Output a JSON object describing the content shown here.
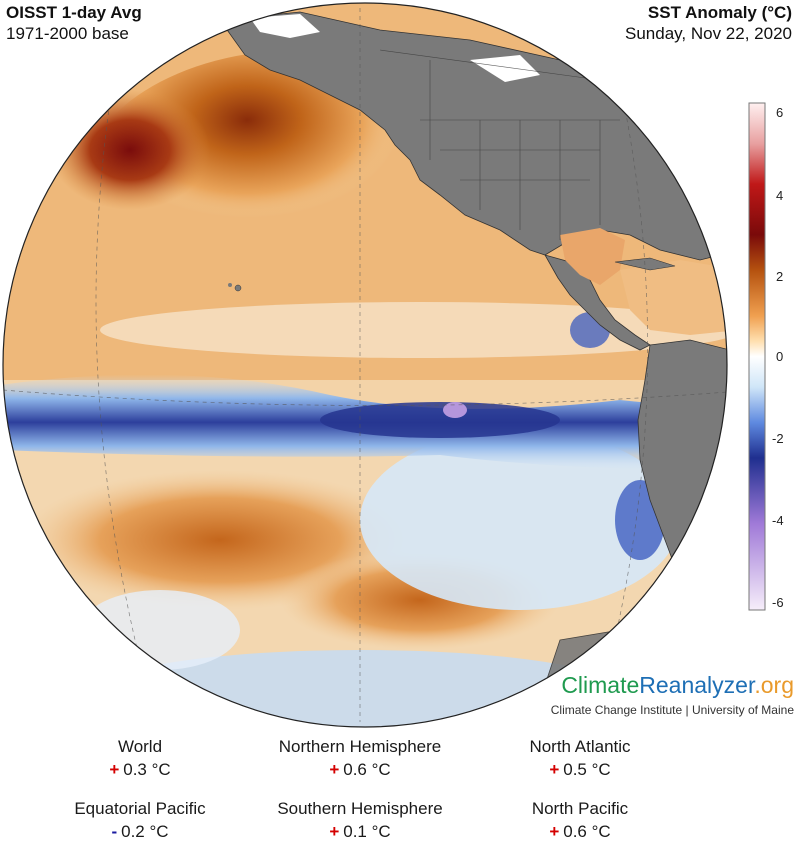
{
  "header": {
    "title": "OISST 1-day Avg",
    "subtitle": "1971-2000 base",
    "map_title": "SST Anomaly (°C)",
    "date": "Sunday, Nov 22, 2020"
  },
  "map": {
    "projection": "orthographic",
    "center_region": "Eastern Pacific",
    "visible_features": [
      "North America",
      "Central America",
      "South America",
      "Hawaii",
      "Equatorial cold tongue"
    ],
    "land_color": "#7a7a7a",
    "ocean_color": "#f2f2f2"
  },
  "colorbar": {
    "ticks": [
      "6",
      "4",
      "2",
      "0",
      "-2",
      "-4",
      "-6"
    ],
    "range": [
      -6,
      6
    ],
    "colors": [
      "#fff0f0",
      "#e8a0a0",
      "#c01818",
      "#7a0a0a",
      "#b5520f",
      "#f0a050",
      "#ffe0b0",
      "#ffffff",
      "#d0e6f8",
      "#5f8ae0",
      "#1f2f8f",
      "#a07ad8",
      "#f6eefa"
    ]
  },
  "branding": {
    "name_part1": "Climate",
    "name_part2": "Reanalyzer",
    "name_part3": ".org",
    "institution": "Climate Change Institute | University of Maine"
  },
  "stats": [
    {
      "label": "World",
      "sign": "+",
      "value": "0.3 °C",
      "sign_color": "#d40000"
    },
    {
      "label": "Northern Hemisphere",
      "sign": "+",
      "value": "0.6 °C",
      "sign_color": "#d40000"
    },
    {
      "label": "North Atlantic",
      "sign": "+",
      "value": "0.5 °C",
      "sign_color": "#d40000"
    },
    {
      "label": "Equatorial Pacific",
      "sign": "-",
      "value": "0.2 °C",
      "sign_color": "#1a1aa0"
    },
    {
      "label": "Southern Hemisphere",
      "sign": "+",
      "value": "0.1 °C",
      "sign_color": "#d40000"
    },
    {
      "label": "North Pacific",
      "sign": "+",
      "value": "0.6 °C",
      "sign_color": "#d40000"
    }
  ]
}
